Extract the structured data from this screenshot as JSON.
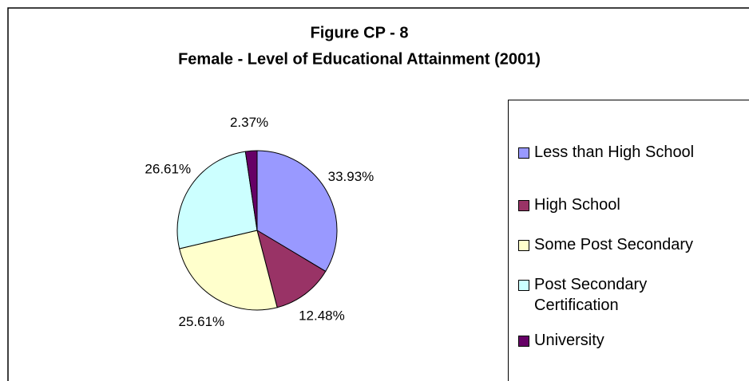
{
  "chart_data": {
    "type": "pie",
    "title": "Figure CP - 8",
    "subtitle": "Female - Level of Educational Attainment (2001)",
    "categories": [
      "Less than High School",
      "High School",
      "Some Post Secondary",
      "Post Secondary Certification",
      "University"
    ],
    "values": [
      33.93,
      12.48,
      25.61,
      26.61,
      2.37
    ],
    "value_labels": [
      "33.93%",
      "12.48%",
      "25.61%",
      "26.61%",
      "2.37%"
    ],
    "colors": [
      "#9999ff",
      "#993366",
      "#ffffcc",
      "#ccffff",
      "#660066"
    ],
    "legend": "right"
  }
}
